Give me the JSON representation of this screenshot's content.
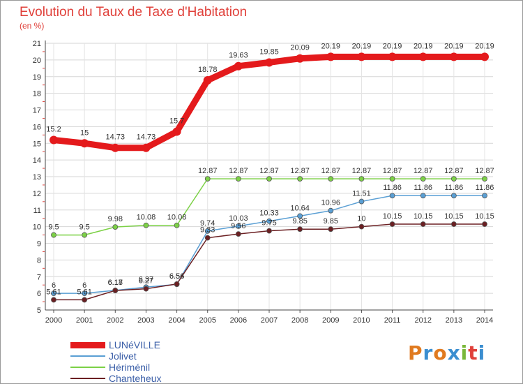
{
  "title": "Evolution du Taux de Taxe d'Habitation",
  "subtitle": "(en %)",
  "logo": {
    "letters": [
      "P",
      "r",
      "o",
      "x",
      "i",
      "t",
      "i"
    ],
    "colors": [
      "#e07a1f",
      "#3b8ed0",
      "#e07a1f",
      "#3b8ed0",
      "#7ab83a",
      "#e0403a",
      "#3b8ed0"
    ]
  },
  "chart_data": {
    "type": "line",
    "title": "Evolution du Taux de Taxe d'Habitation",
    "ylabel": "(en %)",
    "x": [
      "2000",
      "2001",
      "2002",
      "2003",
      "2004",
      "2005",
      "2006",
      "2007",
      "2008",
      "2009",
      "2010",
      "2011",
      "2012",
      "2013",
      "2014"
    ],
    "ylim": [
      5,
      21
    ],
    "yticks": [
      "5",
      "6",
      "7",
      "8",
      "9",
      "10",
      "11",
      "12",
      "13",
      "14",
      "15",
      "16",
      "17",
      "18",
      "19",
      "20",
      "21"
    ],
    "grid": true,
    "legend_position": "bottom-left",
    "series": [
      {
        "name": "LUNéVILLE",
        "color": "#e41a1c",
        "values": [
          15.2,
          15,
          14.73,
          14.73,
          15.7,
          18.78,
          19.63,
          19.85,
          20.09,
          20.19,
          20.19,
          20.19,
          20.19,
          20.19,
          20.19
        ],
        "labels": [
          "15.2",
          "15",
          "14.73",
          "14.73",
          "15.7",
          "18.78",
          "19.63",
          "19.85",
          "20.09",
          "20.19",
          "20.19",
          "20.19",
          "20.19",
          "20.19",
          "20.19"
        ]
      },
      {
        "name": "Jolivet",
        "color": "#5a9fd4",
        "values": [
          6,
          6,
          6.18,
          6.37,
          6.54,
          9.74,
          10.03,
          10.33,
          10.64,
          10.96,
          11.51,
          11.86,
          11.86,
          11.86,
          11.86
        ],
        "labels": [
          "6",
          "6",
          "6.18",
          "6.37",
          "6.54",
          "9.74",
          "10.03",
          "10.33",
          "10.64",
          "10.96",
          "11.51",
          "11.86",
          "11.86",
          "11.86",
          "11.86"
        ]
      },
      {
        "name": "Hériménil",
        "color": "#7cd146",
        "values": [
          9.5,
          9.5,
          9.98,
          10.08,
          10.08,
          12.87,
          12.87,
          12.87,
          12.87,
          12.87,
          12.87,
          12.87,
          12.87,
          12.87,
          12.87
        ],
        "labels": [
          "9.5",
          "9.5",
          "9.98",
          "10.08",
          "10.08",
          "12.87",
          "12.87",
          "12.87",
          "12.87",
          "12.87",
          "12.87",
          "12.87",
          "12.87",
          "12.87",
          "12.87"
        ]
      },
      {
        "name": "Chanteheux",
        "color": "#6b1f22",
        "values": [
          5.61,
          5.61,
          6.17,
          6.27,
          6.56,
          9.33,
          9.56,
          9.75,
          9.85,
          9.85,
          10,
          10.15,
          10.15,
          10.15,
          10.15
        ],
        "labels": [
          "5.61",
          "5.61",
          "6.17",
          "6.27",
          "6.56",
          "9.33",
          "9.56",
          "9.75",
          "9.85",
          "9.85",
          "10",
          "10.15",
          "10.15",
          "10.15",
          "10.15"
        ]
      }
    ]
  }
}
